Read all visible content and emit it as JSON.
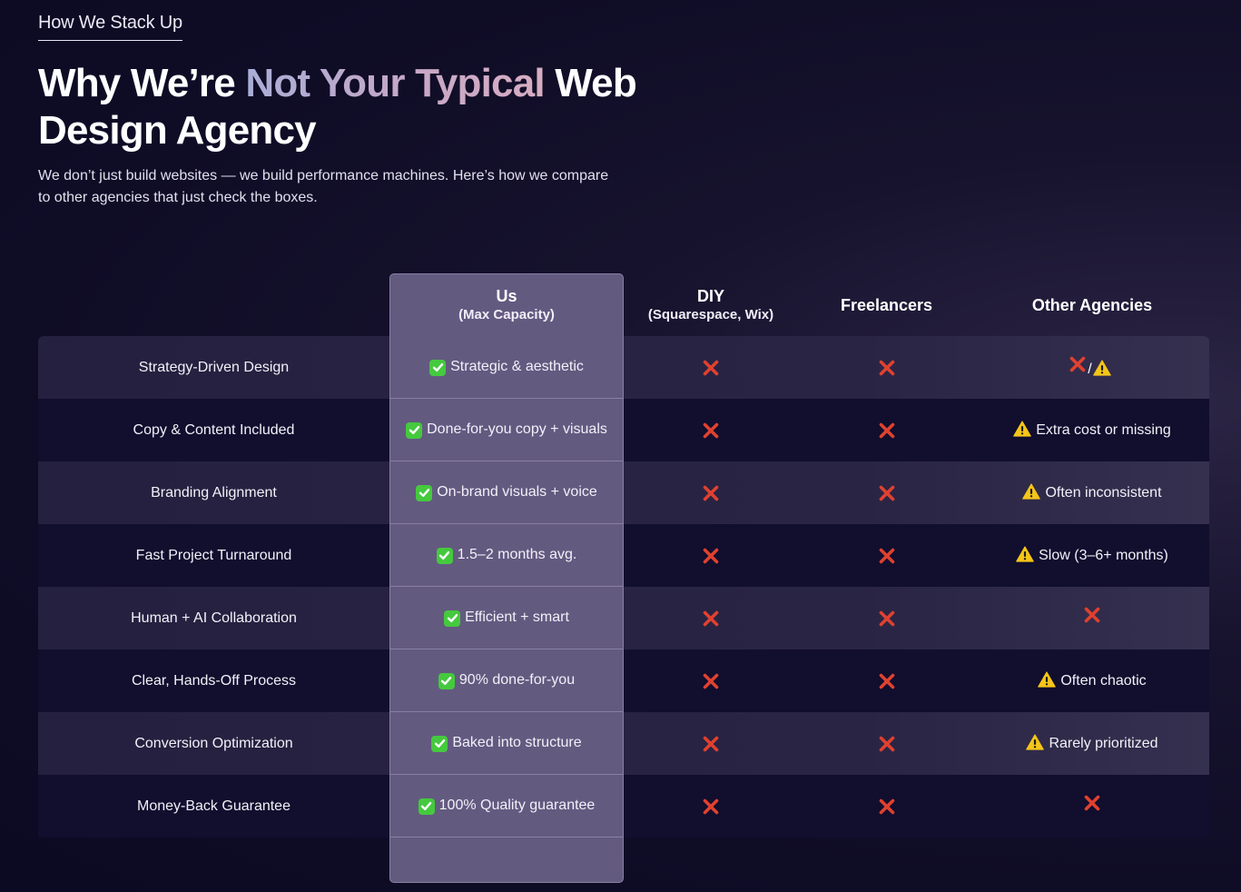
{
  "eyebrow": "How We Stack Up",
  "headline": {
    "part1": "Why We’re ",
    "highlight": "Not Your Typical",
    "part2": " Web Design Agency"
  },
  "subtitle": "We don’t just build websites — we build performance machines. Here’s how we compare to other agencies that just check the boxes.",
  "columns": {
    "us": {
      "title": "Us",
      "subtitle": "(Max Capacity)"
    },
    "diy": {
      "title": "DIY",
      "subtitle": "(Squarespace, Wix)"
    },
    "freelancers": {
      "title": "Freelancers"
    },
    "other": {
      "title": "Other Agencies"
    }
  },
  "rows": [
    {
      "feature": "Strategy-Driven Design",
      "us": "Strategic & aesthetic",
      "diy": "cross",
      "freelancers": "cross",
      "other_icon": "cross-warning",
      "other_text": ""
    },
    {
      "feature": "Copy & Content Included",
      "us": "Done-for-you copy + visuals",
      "diy": "cross",
      "freelancers": "cross",
      "other_icon": "warning",
      "other_text": "Extra cost or missing"
    },
    {
      "feature": "Branding Alignment",
      "us": "On-brand visuals + voice",
      "diy": "cross",
      "freelancers": "cross",
      "other_icon": "warning",
      "other_text": "Often inconsistent"
    },
    {
      "feature": "Fast Project Turnaround",
      "us": "1.5–2 months avg.",
      "diy": "cross",
      "freelancers": "cross",
      "other_icon": "warning",
      "other_text": "Slow (3–6+ months)"
    },
    {
      "feature": "Human + AI Collaboration",
      "us": "Efficient + smart",
      "diy": "cross",
      "freelancers": "cross",
      "other_icon": "cross",
      "other_text": ""
    },
    {
      "feature": "Clear, Hands-Off Process",
      "us": "90% done-for-you",
      "diy": "cross",
      "freelancers": "cross",
      "other_icon": "warning",
      "other_text": "Often chaotic"
    },
    {
      "feature": "Conversion Optimization",
      "us": "Baked into structure",
      "diy": "cross",
      "freelancers": "cross",
      "other_icon": "warning",
      "other_text": "Rarely prioritized"
    },
    {
      "feature": "Money-Back Guarantee",
      "us": "100% Quality guarantee",
      "diy": "cross",
      "freelancers": "cross",
      "other_icon": "cross",
      "other_text": ""
    }
  ],
  "colors": {
    "background": "#0f0c26",
    "us_column": "#635a80",
    "check": "#45c93e",
    "cross": "#e0412f",
    "warning": "#f5c518"
  }
}
